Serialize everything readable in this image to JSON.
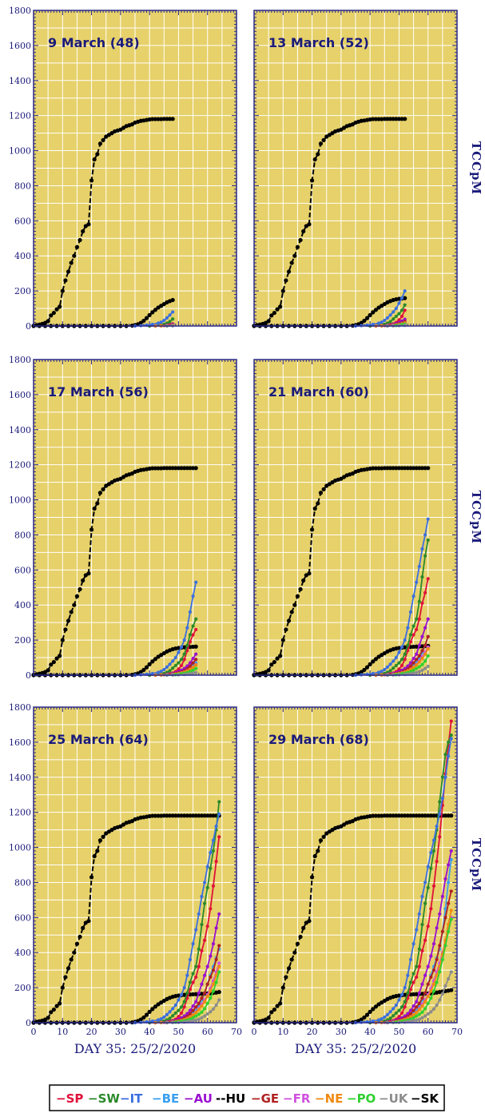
{
  "chart_data": {
    "type": "line",
    "colors": {
      "plot_bg": "#e6d16a",
      "frame": "#2a2a8a",
      "grid": "#ffffff",
      "label": "#1a1a7a"
    },
    "x_axis": {
      "label": "DAY 35: 25/2/2020",
      "range": [
        0,
        70
      ],
      "ticks": [
        0,
        10,
        20,
        30,
        40,
        50,
        60,
        70
      ],
      "tick_labels": [
        "0",
        "10",
        "20",
        "30",
        "40",
        "50",
        "60",
        "70"
      ]
    },
    "y_axis": {
      "label": "TCCpM",
      "range": [
        0,
        1800
      ],
      "ticks": [
        0,
        200,
        400,
        600,
        800,
        1000,
        1200,
        1400,
        1600,
        1800
      ],
      "tick_labels": [
        "0",
        "200",
        "400",
        "600",
        "800",
        "1000",
        "1200",
        "1400",
        "1600",
        "1800"
      ]
    },
    "grid": true,
    "panels": [
      {
        "title": "9 March (48)",
        "last_day": 48
      },
      {
        "title": "13 March (52)",
        "last_day": 52
      },
      {
        "title": "17 March (56)",
        "last_day": 56
      },
      {
        "title": "21 March (60)",
        "last_day": 60
      },
      {
        "title": "25 March (64)",
        "last_day": 64
      },
      {
        "title": "29 March (68)",
        "last_day": 68
      }
    ],
    "legend": {
      "placement": "bottom",
      "entries": [
        {
          "marker": "−",
          "label": "SP",
          "color": "#e0103a"
        },
        {
          "marker": "−",
          "label": "SW",
          "color": "#2a8a2a"
        },
        {
          "marker": "−",
          "label": "IT",
          "color": "#3a6fe0"
        },
        {
          "marker": "−",
          "label": "BE",
          "color": "#3aa0f0"
        },
        {
          "marker": "−",
          "label": "AU",
          "color": "#9a10d0"
        },
        {
          "marker": "--",
          "label": "HU",
          "color": "#000000"
        },
        {
          "marker": "−",
          "label": "GE",
          "color": "#b02020"
        },
        {
          "marker": "−",
          "label": "FR",
          "color": "#d050e0"
        },
        {
          "marker": "−",
          "label": "NE",
          "color": "#f08a10"
        },
        {
          "marker": "−",
          "label": "PO",
          "color": "#30d030"
        },
        {
          "marker": "−",
          "label": "UK",
          "color": "#8c8c8c"
        },
        {
          "marker": "−",
          "label": "SK",
          "color": "#000000"
        }
      ]
    },
    "series": [
      {
        "name": "HU",
        "color": "#000000",
        "dashed": true,
        "days": [
          0,
          1,
          2,
          3,
          4,
          5,
          6,
          7,
          8,
          9,
          10,
          11,
          12,
          13,
          14,
          15,
          16,
          17,
          18,
          19,
          20,
          21,
          22,
          23,
          24,
          25,
          26,
          27,
          28,
          29,
          30,
          31,
          32,
          33,
          34,
          35,
          36,
          37,
          38,
          39,
          40,
          41,
          42,
          43,
          44,
          45,
          46,
          47,
          48,
          49,
          50,
          51,
          52,
          53,
          54,
          55,
          56,
          57,
          58,
          59,
          60,
          61,
          62,
          63,
          64,
          65,
          66,
          67,
          68
        ],
        "values": [
          2,
          5,
          8,
          12,
          18,
          28,
          60,
          75,
          95,
          110,
          200,
          260,
          310,
          360,
          400,
          450,
          490,
          540,
          570,
          580,
          830,
          950,
          980,
          1040,
          1060,
          1080,
          1090,
          1100,
          1110,
          1115,
          1120,
          1130,
          1140,
          1145,
          1150,
          1160,
          1165,
          1170,
          1172,
          1175,
          1178,
          1180,
          1180,
          1180,
          1180,
          1181,
          1181,
          1181,
          1181,
          1181,
          1181,
          1181,
          1181,
          1181,
          1181,
          1181,
          1181,
          1181,
          1181,
          1181,
          1181,
          1181,
          1181,
          1181,
          1181,
          1181,
          1181,
          1181,
          1181
        ]
      },
      {
        "name": "SK",
        "color": "#000000",
        "dashed": false,
        "days": [
          0,
          2,
          4,
          6,
          8,
          10,
          12,
          14,
          16,
          18,
          20,
          22,
          24,
          26,
          28,
          30,
          32,
          34,
          35,
          36,
          37,
          38,
          39,
          40,
          41,
          42,
          43,
          44,
          45,
          46,
          47,
          48,
          49,
          50,
          51,
          52,
          53,
          54,
          55,
          56,
          57,
          58,
          59,
          60,
          61,
          62,
          63,
          64,
          65,
          66,
          67,
          68
        ],
        "values": [
          0,
          0,
          0,
          0,
          0,
          0,
          0,
          0,
          0,
          0,
          0,
          0,
          0,
          0,
          0,
          0,
          0,
          2,
          5,
          10,
          18,
          30,
          45,
          62,
          78,
          92,
          105,
          115,
          125,
          135,
          142,
          148,
          152,
          155,
          157,
          159,
          160,
          161,
          162,
          163,
          164,
          165,
          166,
          167,
          168,
          170,
          172,
          175,
          178,
          180,
          183,
          186
        ]
      },
      {
        "name": "SP",
        "color": "#e0103a",
        "dashed": false,
        "days": [
          40,
          42,
          44,
          45,
          46,
          47,
          48,
          49,
          50,
          51,
          52,
          53,
          54,
          55,
          56,
          57,
          58,
          59,
          60,
          61,
          62,
          63,
          64,
          65,
          66,
          67,
          68
        ],
        "values": [
          0,
          1,
          2,
          3,
          5,
          8,
          12,
          20,
          35,
          55,
          90,
          140,
          190,
          230,
          260,
          320,
          410,
          470,
          550,
          650,
          780,
          920,
          1060,
          1240,
          1420,
          1580,
          1720
        ]
      },
      {
        "name": "SW",
        "color": "#2a8a2a",
        "dashed": false,
        "days": [
          40,
          42,
          44,
          45,
          46,
          47,
          48,
          49,
          50,
          51,
          52,
          53,
          54,
          55,
          56,
          57,
          58,
          59,
          60,
          61,
          62,
          63,
          64,
          65,
          66,
          67,
          68
        ],
        "values": [
          0,
          2,
          6,
          10,
          16,
          25,
          40,
          55,
          70,
          90,
          120,
          170,
          230,
          280,
          320,
          420,
          560,
          680,
          770,
          880,
          980,
          1100,
          1260,
          1400,
          1530,
          1600,
          1640
        ]
      },
      {
        "name": "IT",
        "color": "#3a6fe0",
        "dashed": false,
        "days": [
          35,
          37,
          39,
          41,
          43,
          44,
          45,
          46,
          47,
          48,
          49,
          50,
          51,
          52,
          53,
          54,
          55,
          56,
          57,
          58,
          59,
          60,
          61,
          62,
          63,
          64,
          65,
          66,
          67,
          68
        ],
        "values": [
          0,
          2,
          5,
          9,
          16,
          22,
          32,
          46,
          62,
          80,
          100,
          130,
          160,
          200,
          270,
          360,
          450,
          530,
          620,
          720,
          800,
          890,
          970,
          1040,
          1120,
          1190,
          1280,
          1400,
          1520,
          1620
        ]
      },
      {
        "name": "BE",
        "color": "#3aa0f0",
        "dashed": false,
        "days": [
          42,
          44,
          46,
          48,
          49,
          50,
          51,
          52,
          53,
          54,
          55,
          56,
          57,
          58,
          59,
          60,
          61,
          62,
          63,
          64,
          65,
          66,
          67,
          68
        ],
        "values": [
          0,
          1,
          3,
          6,
          8,
          12,
          16,
          22,
          30,
          40,
          55,
          70,
          95,
          130,
          170,
          220,
          270,
          320,
          370,
          420,
          520,
          650,
          800,
          930
        ]
      },
      {
        "name": "AU",
        "color": "#9a10d0",
        "dashed": false,
        "days": [
          42,
          44,
          46,
          48,
          49,
          50,
          51,
          52,
          53,
          54,
          55,
          56,
          57,
          58,
          59,
          60,
          61,
          62,
          63,
          64,
          65,
          66,
          67,
          68
        ],
        "values": [
          0,
          2,
          5,
          10,
          14,
          20,
          28,
          38,
          52,
          70,
          95,
          120,
          170,
          220,
          270,
          320,
          380,
          450,
          540,
          620,
          720,
          820,
          900,
          980
        ]
      },
      {
        "name": "GE",
        "color": "#b02020",
        "dashed": false,
        "days": [
          42,
          44,
          46,
          48,
          49,
          50,
          51,
          52,
          53,
          54,
          55,
          56,
          57,
          58,
          59,
          60,
          61,
          62,
          63,
          64,
          65,
          66,
          67,
          68
        ],
        "values": [
          0,
          1,
          3,
          6,
          9,
          13,
          18,
          25,
          35,
          50,
          70,
          90,
          110,
          140,
          170,
          220,
          260,
          300,
          360,
          440,
          520,
          600,
          680,
          750
        ]
      },
      {
        "name": "FR",
        "color": "#d050e0",
        "dashed": false,
        "days": [
          42,
          44,
          46,
          48,
          49,
          50,
          51,
          52,
          53,
          54,
          55,
          56,
          57,
          58,
          59,
          60,
          61,
          62,
          63,
          64,
          65,
          66,
          67,
          68
        ],
        "values": [
          0,
          1,
          2,
          4,
          6,
          9,
          13,
          18,
          25,
          34,
          45,
          60,
          80,
          105,
          130,
          160,
          195,
          240,
          290,
          340,
          400,
          470,
          540,
          600
        ]
      },
      {
        "name": "NE",
        "color": "#f08a10",
        "dashed": false,
        "days": [
          42,
          44,
          46,
          48,
          49,
          50,
          51,
          52,
          53,
          54,
          55,
          56,
          57,
          58,
          59,
          60,
          61,
          62,
          63,
          64,
          65,
          66,
          67,
          68
        ],
        "values": [
          0,
          1,
          2,
          4,
          6,
          9,
          12,
          17,
          24,
          33,
          45,
          58,
          75,
          95,
          120,
          150,
          180,
          220,
          270,
          320,
          390,
          470,
          560,
          640
        ]
      },
      {
        "name": "PO",
        "color": "#30d030",
        "dashed": false,
        "days": [
          46,
          48,
          49,
          50,
          51,
          52,
          53,
          54,
          55,
          56,
          57,
          58,
          59,
          60,
          61,
          62,
          63,
          64,
          65,
          66,
          67,
          68
        ],
        "values": [
          0,
          2,
          3,
          5,
          8,
          11,
          15,
          20,
          28,
          38,
          48,
          60,
          80,
          110,
          140,
          180,
          230,
          290,
          360,
          440,
          520,
          590
        ]
      },
      {
        "name": "UK",
        "color": "#8c8c8c",
        "dashed": false,
        "days": [
          46,
          48,
          50,
          52,
          53,
          54,
          55,
          56,
          57,
          58,
          59,
          60,
          61,
          62,
          63,
          64,
          65,
          66,
          67,
          68
        ],
        "values": [
          0,
          1,
          2,
          4,
          6,
          8,
          11,
          15,
          20,
          28,
          38,
          50,
          62,
          78,
          100,
          130,
          165,
          210,
          250,
          290
        ]
      }
    ]
  }
}
